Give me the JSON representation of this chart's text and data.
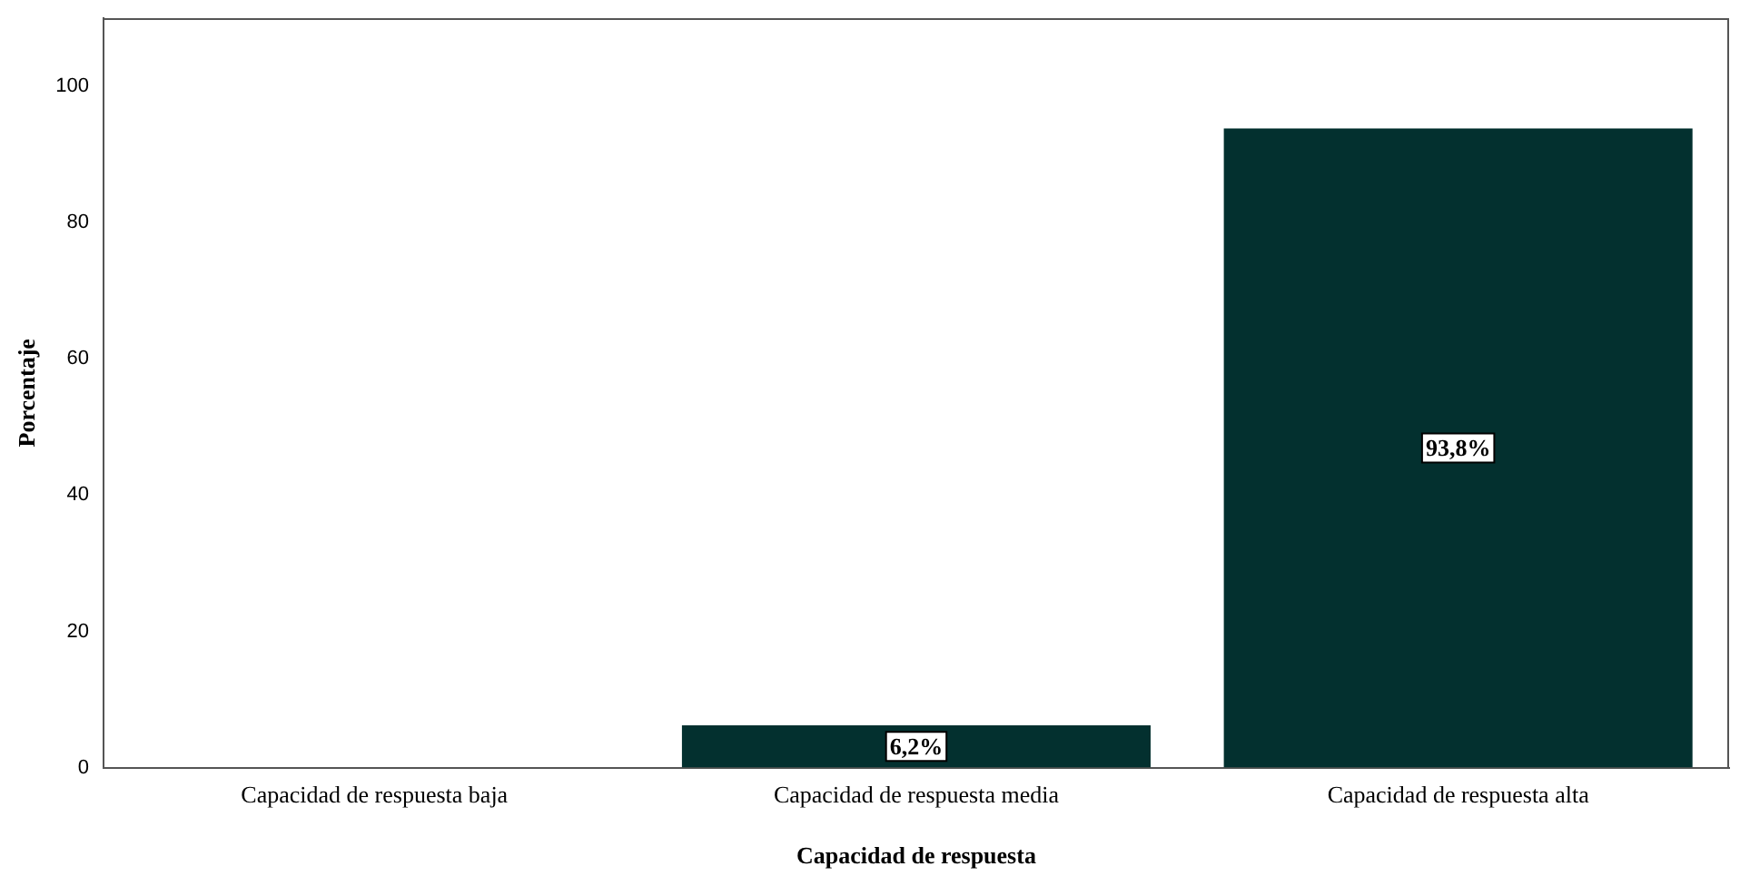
{
  "chart_data": {
    "type": "bar",
    "xlabel": "Capacidad de respuesta",
    "ylabel": "Porcentaje",
    "categories": [
      "Capacidad de respuesta baja",
      "Capacidad de respuesta media",
      "Capacidad de respuesta alta"
    ],
    "values": [
      0,
      6.2,
      93.8
    ],
    "value_labels": [
      null,
      "6,2%",
      "93,8%"
    ],
    "color": "#03302f",
    "ylim": [
      0,
      110
    ],
    "yticks": [
      0,
      20,
      40,
      60,
      80,
      100
    ]
  }
}
